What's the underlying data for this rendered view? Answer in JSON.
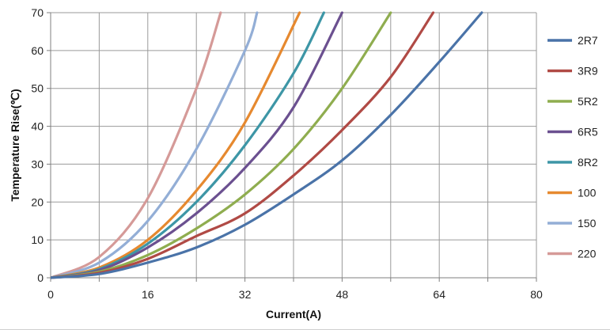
{
  "chart_data": {
    "type": "line",
    "title": "",
    "xlabel": "Current(A)",
    "ylabel": "Temperature Rise(℃)",
    "xlim": [
      0,
      80
    ],
    "ylim": [
      0,
      70
    ],
    "x_ticks": [
      0,
      16,
      32,
      48,
      64,
      80
    ],
    "y_ticks": [
      0,
      10,
      20,
      30,
      40,
      50,
      60,
      70
    ],
    "x_minor_grid": [
      8,
      24,
      40,
      56,
      72
    ],
    "grid": true,
    "legend": "right",
    "series": [
      {
        "name": "2R7",
        "color": "#4a73a8",
        "x": [
          0,
          8,
          16,
          24,
          32,
          40,
          48,
          56,
          64,
          71
        ],
        "values": [
          0,
          1,
          4,
          8,
          14,
          22,
          31,
          43,
          57,
          70
        ]
      },
      {
        "name": "3R9",
        "color": "#b04a45",
        "x": [
          0,
          8,
          16,
          24,
          32,
          40,
          48,
          56,
          63
        ],
        "values": [
          0,
          1.3,
          5,
          11,
          17,
          27,
          39,
          53,
          70
        ]
      },
      {
        "name": "5R2",
        "color": "#8fad4f",
        "x": [
          0,
          8,
          16,
          24,
          32,
          40,
          48,
          56
        ],
        "values": [
          0,
          1.6,
          6,
          13,
          22,
          34,
          50,
          70
        ]
      },
      {
        "name": "6R5",
        "color": "#6b5090",
        "x": [
          0,
          8,
          16,
          24,
          32,
          40,
          48
        ],
        "values": [
          0,
          2,
          8,
          17,
          29,
          45,
          70
        ]
      },
      {
        "name": "8R2",
        "color": "#3d96a6",
        "x": [
          0,
          8,
          16,
          24,
          32,
          40,
          45
        ],
        "values": [
          0,
          2.3,
          9,
          20,
          35,
          54,
          70
        ]
      },
      {
        "name": "100",
        "color": "#e6892f",
        "x": [
          0,
          8,
          16,
          24,
          32,
          41
        ],
        "values": [
          0,
          2.7,
          10,
          23,
          41,
          70
        ]
      },
      {
        "name": "150",
        "color": "#93aed6",
        "x": [
          0,
          8,
          16,
          24,
          32,
          34
        ],
        "values": [
          0,
          4,
          15,
          34,
          60,
          70
        ]
      },
      {
        "name": "220",
        "color": "#d59a98",
        "x": [
          0,
          8,
          16,
          24,
          28
        ],
        "values": [
          0,
          5.5,
          21,
          50,
          70
        ]
      }
    ]
  }
}
